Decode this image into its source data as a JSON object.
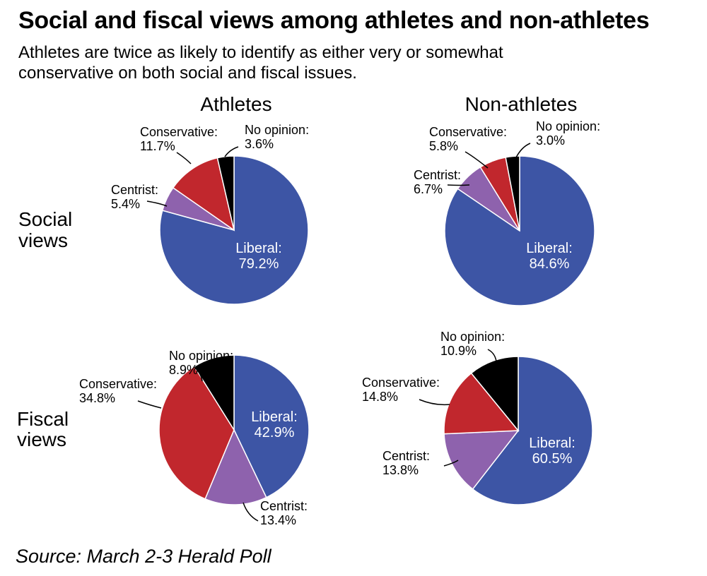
{
  "title": "Social and fiscal views among athletes and non-athletes",
  "subtitle": "Athletes are twice as likely to identify as either very or somewhat conservative on both social and fiscal issues.",
  "source": "Source: March 2-3 Herald Poll",
  "columns": [
    "Athletes",
    "Non-athletes"
  ],
  "rows": [
    {
      "line1": "Social",
      "line2": "views"
    },
    {
      "line1": "Fiscal",
      "line2": "views"
    }
  ],
  "colors": {
    "Liberal": "#3d55a5",
    "Centrist": "#8e62ad",
    "Conservative": "#c1272d",
    "No opinion": "#000000"
  },
  "chart_data": [
    {
      "type": "pie",
      "column": "Athletes",
      "row": "Social views",
      "slices": [
        {
          "label": "Liberal",
          "value": 79.2,
          "value_text": "79.2%"
        },
        {
          "label": "Centrist",
          "value": 5.4,
          "value_text": "5.4%"
        },
        {
          "label": "Conservative",
          "value": 11.7,
          "value_text": "11.7%"
        },
        {
          "label": "No opinion",
          "value": 3.6,
          "value_text": "3.6%"
        }
      ]
    },
    {
      "type": "pie",
      "column": "Non-athletes",
      "row": "Social views",
      "slices": [
        {
          "label": "Liberal",
          "value": 84.6,
          "value_text": "84.6%"
        },
        {
          "label": "Centrist",
          "value": 6.7,
          "value_text": "6.7%"
        },
        {
          "label": "Conservative",
          "value": 5.8,
          "value_text": "5.8%"
        },
        {
          "label": "No opinion",
          "value": 3.0,
          "value_text": "3.0%"
        }
      ]
    },
    {
      "type": "pie",
      "column": "Athletes",
      "row": "Fiscal views",
      "slices": [
        {
          "label": "Liberal",
          "value": 42.9,
          "value_text": "42.9%"
        },
        {
          "label": "Centrist",
          "value": 13.4,
          "value_text": "13.4%"
        },
        {
          "label": "Conservative",
          "value": 34.8,
          "value_text": "34.8%"
        },
        {
          "label": "No opinion",
          "value": 8.9,
          "value_text": "8.9%"
        }
      ]
    },
    {
      "type": "pie",
      "column": "Non-athletes",
      "row": "Fiscal views",
      "slices": [
        {
          "label": "Liberal",
          "value": 60.5,
          "value_text": "60.5%"
        },
        {
          "label": "Centrist",
          "value": 13.8,
          "value_text": "13.8%"
        },
        {
          "label": "Conservative",
          "value": 14.8,
          "value_text": "14.8%"
        },
        {
          "label": "No opinion",
          "value": 10.9,
          "value_text": "10.9%"
        }
      ]
    }
  ]
}
